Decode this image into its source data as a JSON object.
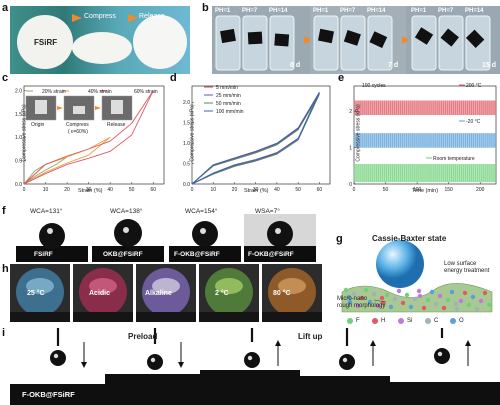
{
  "panels": {
    "a": {
      "letter": "a",
      "sample": "FSiRF",
      "step1": "Compress",
      "step2": "Release"
    },
    "b": {
      "letter": "b",
      "ph_labels": [
        "PH=1",
        "PH=7",
        "PH=14"
      ],
      "days": [
        "0 d",
        "7 d",
        "15 d"
      ]
    },
    "c": {
      "letter": "c",
      "legend": [
        "20% strain",
        "40% strain",
        "60% strain"
      ],
      "photo_labels": [
        "Origin",
        "Compress",
        "Release"
      ],
      "compress_note": "( ε=60%)"
    },
    "d": {
      "letter": "d",
      "legend": [
        "5 mm/min",
        "25 mm/min",
        "50 mm/min",
        "100 mm/min"
      ]
    },
    "e": {
      "letter": "e",
      "cycles": "100 cycles",
      "legend": [
        "200 °C",
        "-20 °C",
        "Room temperature"
      ]
    },
    "f": {
      "letter": "f",
      "items": [
        {
          "angle": "WCA=131°",
          "name": "FSiRF"
        },
        {
          "angle": "WCA=138°",
          "name": "OKB@FSiRF"
        },
        {
          "angle": "WCA=154°",
          "name": "F-OKB@FSiRF"
        },
        {
          "angle": "WSA=7°",
          "name": "F-OKB@FSiRF"
        }
      ]
    },
    "g": {
      "letter": "g",
      "title": "Cassie-Baxter state",
      "note1": "Low surface",
      "note2": "energy treatment",
      "note3": "Micro-nano",
      "note4": "rough morphology",
      "elements": [
        "F",
        "H",
        "Si",
        "C",
        "O"
      ]
    },
    "h": {
      "letter": "h",
      "drops": [
        "25 °C",
        "Acidic",
        "Alkaline",
        "2 °C",
        "80 °C"
      ]
    },
    "i": {
      "letter": "i",
      "preload": "Preload",
      "liftup": "Lift up",
      "sample": "F-OKB@FSiRF"
    }
  },
  "chart_data": [
    {
      "type": "line",
      "panel": "c",
      "xlabel": "Strain (%)",
      "ylabel": "Compressive stress (kPa)",
      "xlim": [
        0,
        65
      ],
      "ylim": [
        0.0,
        2.1
      ],
      "xticks": [
        0,
        10,
        20,
        30,
        40,
        50,
        60
      ],
      "yticks": [
        0.0,
        0.5,
        1.0,
        1.5,
        2.0
      ],
      "series": [
        {
          "name": "20% strain",
          "color": "#9aa06a",
          "x": [
            0,
            5,
            10,
            15,
            20,
            15,
            10,
            5,
            0
          ],
          "y": [
            0,
            0.28,
            0.42,
            0.5,
            0.58,
            0.42,
            0.3,
            0.16,
            0
          ]
        },
        {
          "name": "40% strain",
          "color": "#e9a23b",
          "x": [
            0,
            10,
            20,
            30,
            40,
            30,
            20,
            10,
            0
          ],
          "y": [
            0,
            0.42,
            0.58,
            0.75,
            1.0,
            0.62,
            0.45,
            0.25,
            0
          ]
        },
        {
          "name": "60% strain",
          "color": "#e05a66",
          "x": [
            0,
            10,
            20,
            30,
            40,
            50,
            60,
            50,
            40,
            30,
            20,
            10,
            0
          ],
          "y": [
            0,
            0.42,
            0.6,
            0.75,
            0.92,
            1.3,
            2.0,
            1.05,
            0.7,
            0.55,
            0.42,
            0.22,
            0
          ]
        }
      ]
    },
    {
      "type": "line",
      "panel": "d",
      "xlabel": "Strain (%)",
      "ylabel": "Compressive stress (kPa)",
      "xlim": [
        0,
        65
      ],
      "ylim": [
        0.0,
        2.4
      ],
      "xticks": [
        0,
        10,
        20,
        30,
        40,
        50,
        60
      ],
      "yticks": [
        0.0,
        0.5,
        1.0,
        1.5,
        2.0
      ],
      "series": [
        {
          "name": "5 mm/min",
          "color": "#c8466e",
          "x": [
            0,
            10,
            20,
            30,
            40,
            50,
            60,
            50,
            40,
            30,
            20,
            10,
            0
          ],
          "y": [
            0,
            0.45,
            0.62,
            0.78,
            0.98,
            1.35,
            2.22,
            1.1,
            0.75,
            0.58,
            0.45,
            0.25,
            0
          ]
        },
        {
          "name": "25 mm/min",
          "color": "#7a4fa0",
          "x": [
            0,
            10,
            20,
            30,
            40,
            50,
            60,
            50,
            40,
            30,
            20,
            10,
            0
          ],
          "y": [
            0,
            0.47,
            0.64,
            0.8,
            1.0,
            1.38,
            2.25,
            1.12,
            0.77,
            0.6,
            0.47,
            0.27,
            0
          ]
        },
        {
          "name": "50 mm/min",
          "color": "#4f8f5a",
          "x": [
            0,
            10,
            20,
            30,
            40,
            50,
            60,
            50,
            40,
            30,
            20,
            10,
            0
          ],
          "y": [
            0,
            0.44,
            0.6,
            0.76,
            0.96,
            1.33,
            2.2,
            1.08,
            0.73,
            0.56,
            0.43,
            0.24,
            0
          ]
        },
        {
          "name": "100 mm/min",
          "color": "#3c64b4",
          "x": [
            0,
            10,
            20,
            30,
            40,
            50,
            60,
            50,
            40,
            30,
            20,
            10,
            0
          ],
          "y": [
            0,
            0.46,
            0.63,
            0.79,
            0.99,
            1.36,
            2.23,
            1.11,
            0.76,
            0.59,
            0.46,
            0.26,
            0
          ]
        }
      ]
    },
    {
      "type": "area",
      "panel": "e",
      "xlabel": "Time (min)",
      "ylabel": "Compressive stress (kPa)",
      "xlim": [
        0,
        225
      ],
      "ylim": [
        0,
        2.7
      ],
      "xticks": [
        0,
        50,
        100,
        150,
        200
      ],
      "yticks": [
        0,
        1,
        2
      ],
      "series": [
        {
          "name": "200 °C",
          "color": "#e05a66",
          "low": 1.9,
          "high": 2.3
        },
        {
          "name": "-20 °C",
          "color": "#5aa0d8",
          "low": 1.0,
          "high": 1.4
        },
        {
          "name": "Room temperature",
          "color": "#6fd07a",
          "low": 0.05,
          "high": 0.55
        }
      ]
    }
  ]
}
